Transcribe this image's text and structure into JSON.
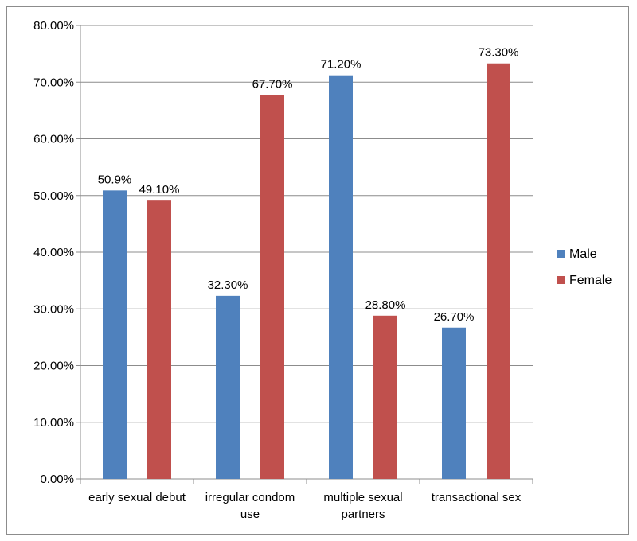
{
  "chart_data": {
    "type": "bar",
    "title": "",
    "xlabel": "",
    "ylabel": "",
    "ylim": [
      0,
      80
    ],
    "y_tick_step": 10,
    "y_tick_format": "percent_2dp",
    "grid": true,
    "legend_position": "right",
    "categories": [
      "early sexual debut",
      "irregular condom use",
      "multiple sexual partners",
      "transactional sex"
    ],
    "series": [
      {
        "name": "Male",
        "color": "#4f81bd",
        "values": [
          50.9,
          32.3,
          71.2,
          26.7
        ],
        "labels": [
          "50.9%",
          "32.30%",
          "71.20%",
          "26.70%"
        ]
      },
      {
        "name": "Female",
        "color": "#c0504d",
        "values": [
          49.1,
          67.7,
          28.8,
          73.3
        ],
        "labels": [
          "49.10%",
          "67.70%",
          "28.80%",
          "73.30%"
        ]
      }
    ]
  }
}
